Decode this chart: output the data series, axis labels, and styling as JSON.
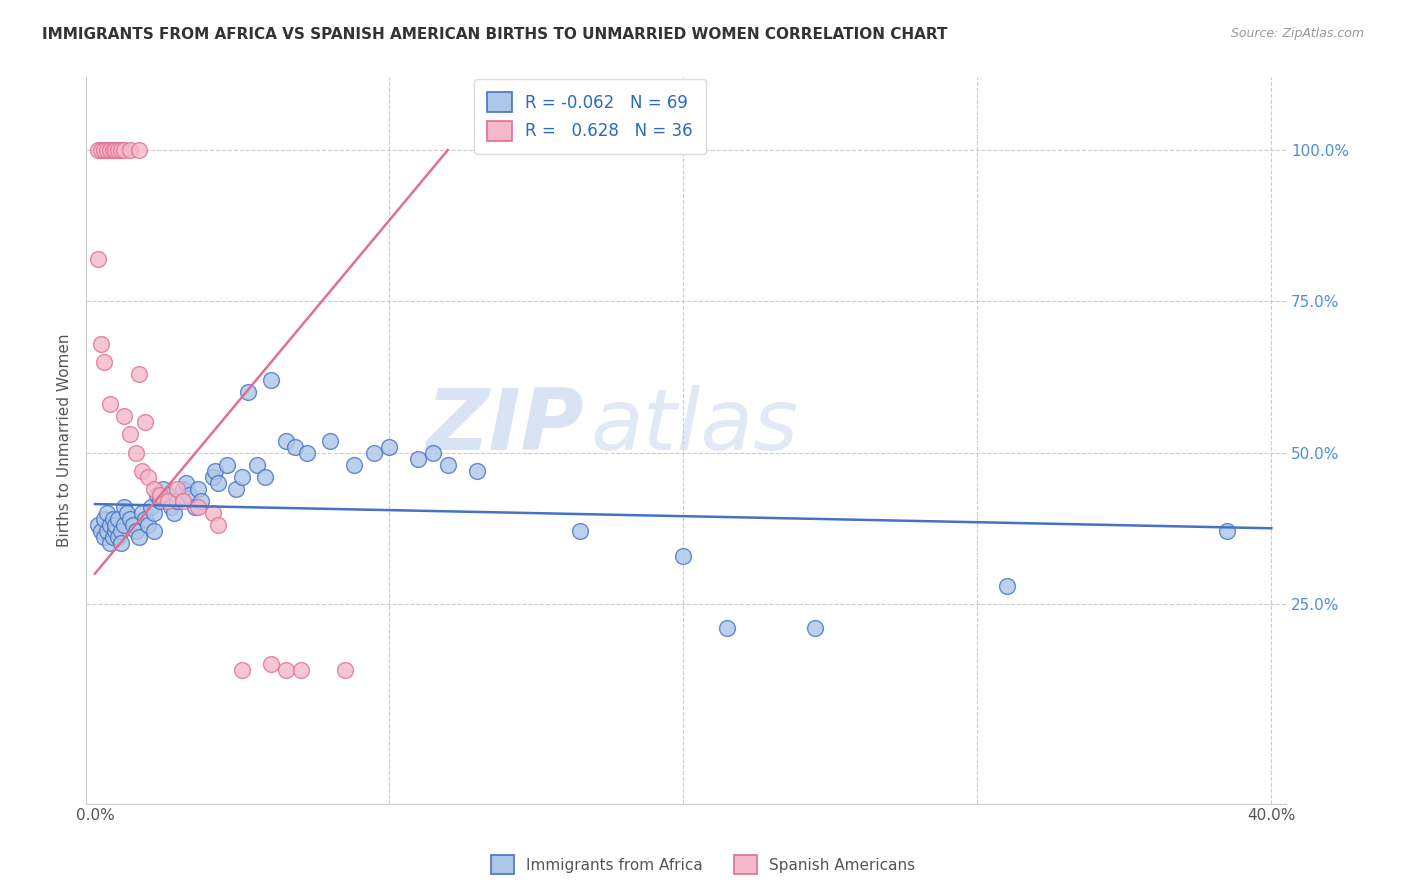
{
  "title": "IMMIGRANTS FROM AFRICA VS SPANISH AMERICAN BIRTHS TO UNMARRIED WOMEN CORRELATION CHART",
  "source": "Source: ZipAtlas.com",
  "ylabel": "Births to Unmarried Women",
  "blue_R": "-0.062",
  "blue_N": "69",
  "pink_R": "0.628",
  "pink_N": "36",
  "blue_color": "#aec6e8",
  "pink_color": "#f5b8cb",
  "blue_line_color": "#4472c4",
  "pink_line_color": "#e07090",
  "watermark_zip": "ZIP",
  "watermark_atlas": "atlas",
  "legend_label_blue": "Immigrants from Africa",
  "legend_label_pink": "Spanish Americans",
  "xlim": [
    -0.003,
    0.405
  ],
  "ylim": [
    -0.08,
    1.12
  ],
  "blue_points_x": [
    0.001,
    0.002,
    0.003,
    0.003,
    0.004,
    0.004,
    0.005,
    0.005,
    0.006,
    0.006,
    0.007,
    0.007,
    0.008,
    0.008,
    0.009,
    0.009,
    0.01,
    0.01,
    0.011,
    0.012,
    0.013,
    0.014,
    0.015,
    0.016,
    0.017,
    0.018,
    0.019,
    0.02,
    0.02,
    0.021,
    0.022,
    0.023,
    0.025,
    0.026,
    0.027,
    0.028,
    0.03,
    0.031,
    0.032,
    0.034,
    0.035,
    0.036,
    0.04,
    0.041,
    0.042,
    0.045,
    0.048,
    0.05,
    0.052,
    0.055,
    0.058,
    0.06,
    0.065,
    0.068,
    0.072,
    0.08,
    0.088,
    0.095,
    0.1,
    0.11,
    0.115,
    0.12,
    0.13,
    0.165,
    0.2,
    0.215,
    0.245,
    0.31,
    0.385
  ],
  "blue_points_y": [
    0.38,
    0.37,
    0.36,
    0.39,
    0.37,
    0.4,
    0.38,
    0.35,
    0.39,
    0.36,
    0.37,
    0.38,
    0.36,
    0.39,
    0.37,
    0.35,
    0.41,
    0.38,
    0.4,
    0.39,
    0.38,
    0.37,
    0.36,
    0.4,
    0.39,
    0.38,
    0.41,
    0.4,
    0.37,
    0.43,
    0.42,
    0.44,
    0.43,
    0.41,
    0.4,
    0.42,
    0.44,
    0.45,
    0.43,
    0.41,
    0.44,
    0.42,
    0.46,
    0.47,
    0.45,
    0.48,
    0.44,
    0.46,
    0.6,
    0.48,
    0.46,
    0.62,
    0.52,
    0.51,
    0.5,
    0.52,
    0.48,
    0.5,
    0.51,
    0.49,
    0.5,
    0.48,
    0.47,
    0.37,
    0.33,
    0.21,
    0.21,
    0.28,
    0.37
  ],
  "pink_points_x": [
    0.001,
    0.002,
    0.003,
    0.004,
    0.005,
    0.006,
    0.007,
    0.008,
    0.009,
    0.01,
    0.012,
    0.015,
    0.001,
    0.002,
    0.003,
    0.005,
    0.01,
    0.012,
    0.014,
    0.015,
    0.016,
    0.017,
    0.018,
    0.02,
    0.022,
    0.025,
    0.028,
    0.03,
    0.035,
    0.04,
    0.042,
    0.05,
    0.06,
    0.065,
    0.07,
    0.085
  ],
  "pink_points_y": [
    1.0,
    1.0,
    1.0,
    1.0,
    1.0,
    1.0,
    1.0,
    1.0,
    1.0,
    1.0,
    1.0,
    1.0,
    0.82,
    0.68,
    0.65,
    0.58,
    0.56,
    0.53,
    0.5,
    0.63,
    0.47,
    0.55,
    0.46,
    0.44,
    0.43,
    0.42,
    0.44,
    0.42,
    0.41,
    0.4,
    0.38,
    0.14,
    0.15,
    0.14,
    0.14,
    0.14
  ],
  "blue_line_x": [
    0.0,
    0.4
  ],
  "blue_line_y": [
    0.415,
    0.375
  ],
  "pink_line_x": [
    0.0,
    0.12
  ],
  "pink_line_y": [
    0.3,
    1.0
  ]
}
